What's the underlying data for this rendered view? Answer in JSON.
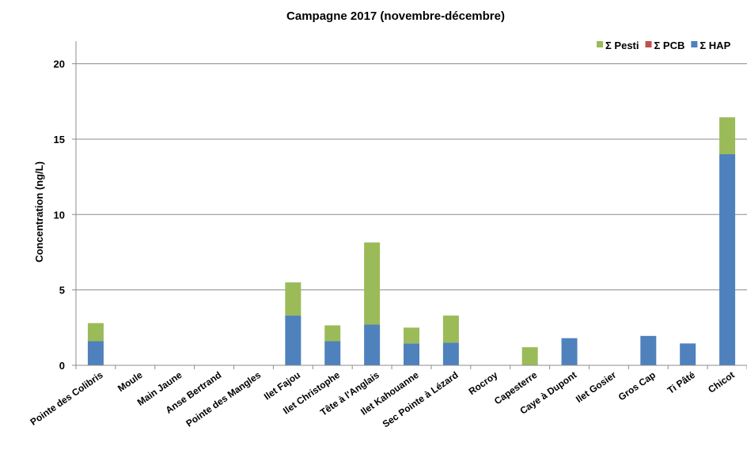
{
  "chart_data": {
    "type": "bar",
    "stacked": true,
    "title": "Campagne 2017 (novembre-décembre)",
    "xlabel": "",
    "ylabel": "Concentration (ng/L)",
    "ylim": [
      0,
      21.5
    ],
    "yticks": [
      0,
      5,
      10,
      15,
      20
    ],
    "grid": true,
    "legend_position": "top-right",
    "categories": [
      "Pointe des Colibris",
      "Moule",
      "Main Jaune",
      "Anse Bertrand",
      "Pointe des Mangles",
      "Ilet Fajou",
      "Ilet Christophe",
      "Tête à l'Anglais",
      "Ilet Kahouanne",
      "Sec Pointe à Lézard",
      "Rocroy",
      "Capesterre",
      "Caye à Dupont",
      "Ilet Gosier",
      "Gros Cap",
      "Ti Pâté",
      "Chicot"
    ],
    "series": [
      {
        "name": "Σ HAP",
        "color": "#4f81bd",
        "values": [
          1.6,
          0,
          0,
          0,
          0,
          3.3,
          1.6,
          2.7,
          1.45,
          1.5,
          0,
          0,
          1.8,
          0,
          1.95,
          1.45,
          14.0
        ]
      },
      {
        "name": "Σ PCB",
        "color": "#c0504d",
        "values": [
          0,
          0,
          0,
          0,
          0,
          0,
          0,
          0,
          0,
          0,
          0,
          0,
          0,
          0,
          0,
          0,
          0
        ]
      },
      {
        "name": "Σ Pesti",
        "color": "#9bbb59",
        "values": [
          1.2,
          0,
          0,
          0,
          0,
          2.2,
          1.05,
          5.45,
          1.05,
          1.8,
          0,
          1.2,
          0,
          0,
          0,
          0,
          2.45
        ]
      }
    ],
    "legend_order": [
      "Σ Pesti",
      "Σ PCB",
      "Σ HAP"
    ]
  }
}
